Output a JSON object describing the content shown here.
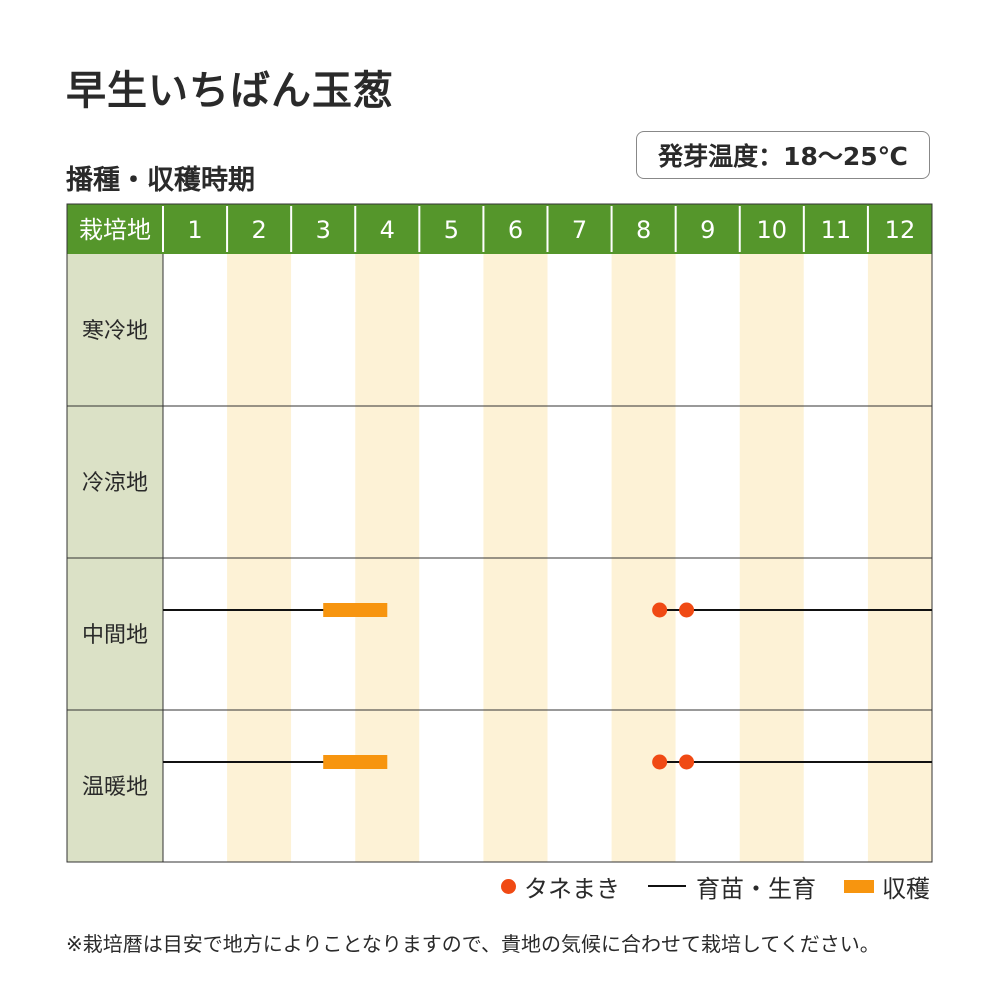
{
  "title": "早生いちばん玉葱",
  "subtitle": "播種・収穫時期",
  "germination": "発芽温度：18～25℃",
  "colors": {
    "header_bg": "#55962b",
    "label_col_bg": "#dbe1c6",
    "alt_col_bg": "#fdf2d6",
    "sowing": "#f04a14",
    "harvest": "#f7950f",
    "growing": "#111111"
  },
  "chart_data": {
    "type": "table",
    "header_label": "栽培地",
    "months": [
      "1",
      "2",
      "3",
      "4",
      "5",
      "6",
      "7",
      "8",
      "9",
      "10",
      "11",
      "12"
    ],
    "regions": [
      {
        "name": "寒冷地",
        "sowing": [],
        "growing": [],
        "harvest": []
      },
      {
        "name": "冷涼地",
        "sowing": [],
        "growing": [],
        "harvest": []
      },
      {
        "name": "中間地",
        "sowing": [
          8.75,
          9.17
        ],
        "growing": [
          [
            1.0,
            4.0
          ],
          [
            8.75,
            13.0
          ]
        ],
        "harvest": [
          [
            3.5,
            4.5
          ]
        ]
      },
      {
        "name": "温暖地",
        "sowing": [
          8.75,
          9.17
        ],
        "growing": [
          [
            1.0,
            4.0
          ],
          [
            8.75,
            13.0
          ]
        ],
        "harvest": [
          [
            3.5,
            4.5
          ]
        ]
      }
    ]
  },
  "legend": {
    "sowing": "タネまき",
    "growing": "育苗・生育",
    "harvest": "収穫"
  },
  "note": "※栽培暦は目安で地方によりことなりますので、貴地の気候に合わせて栽培してください。"
}
